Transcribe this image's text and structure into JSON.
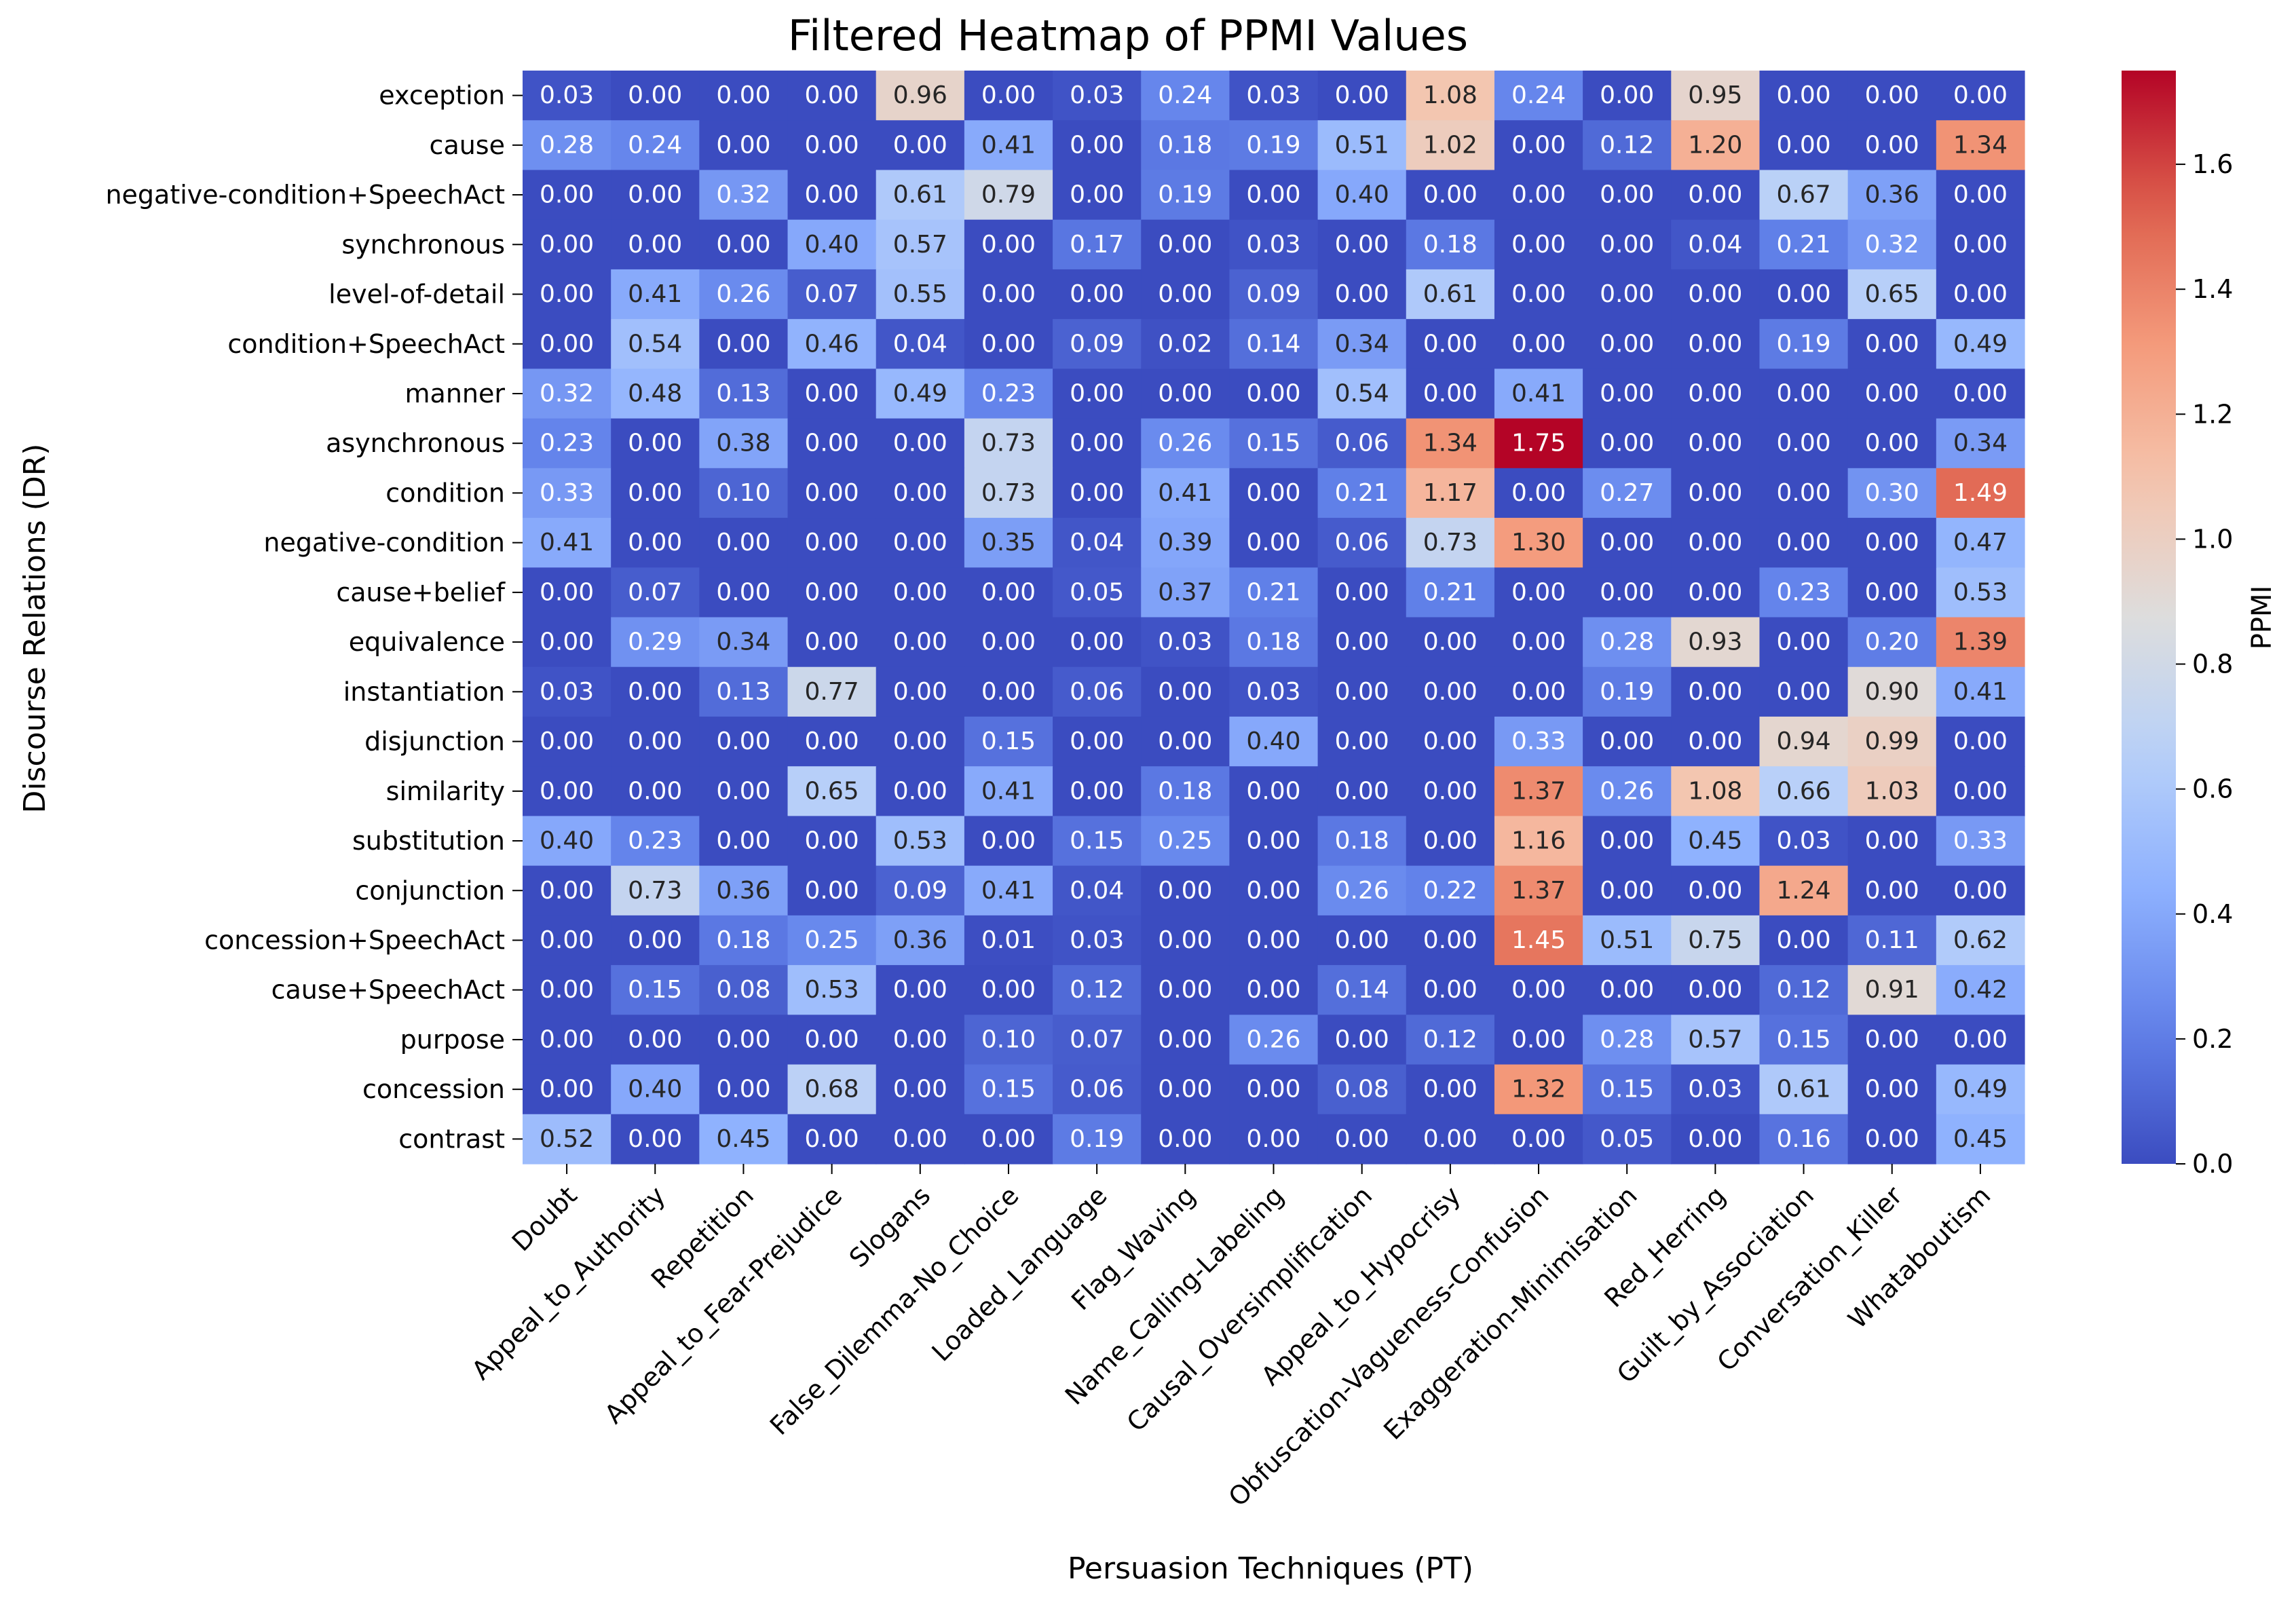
{
  "chart_data": {
    "type": "heatmap",
    "title": "Filtered Heatmap of PPMI Values",
    "xlabel": "Persuasion Techniques (PT)",
    "ylabel": "Discourse Relations (DR)",
    "colorbar_label": "PPMI",
    "colormap": "coolwarm",
    "vmin": 0.0,
    "vmax": 1.75,
    "colorbar_ticks": [
      "0.0",
      "0.2",
      "0.4",
      "0.6",
      "0.8",
      "1.0",
      "1.2",
      "1.4",
      "1.6"
    ],
    "columns": [
      "Doubt",
      "Appeal_to_Authority",
      "Repetition",
      "Appeal_to_Fear-Prejudice",
      "Slogans",
      "False_Dilemma-No_Choice",
      "Loaded_Language",
      "Flag_Waving",
      "Name_Calling-Labeling",
      "Causal_Oversimplification",
      "Appeal_to_Hypocrisy",
      "Obfuscation-Vagueness-Confusion",
      "Exaggeration-Minimisation",
      "Red_Herring",
      "Guilt_by_Association",
      "Conversation_Killer",
      "Whataboutism"
    ],
    "rows": [
      "exception",
      "cause",
      "negative-condition+SpeechAct",
      "synchronous",
      "level-of-detail",
      "condition+SpeechAct",
      "manner",
      "asynchronous",
      "condition",
      "negative-condition",
      "cause+belief",
      "equivalence",
      "instantiation",
      "disjunction",
      "similarity",
      "substitution",
      "conjunction",
      "concession+SpeechAct",
      "cause+SpeechAct",
      "purpose",
      "concession",
      "contrast"
    ],
    "values": [
      [
        0.03,
        0.0,
        0.0,
        0.0,
        0.96,
        0.0,
        0.03,
        0.24,
        0.03,
        0.0,
        1.08,
        0.24,
        0.0,
        0.95,
        0.0,
        0.0,
        0.0
      ],
      [
        0.28,
        0.24,
        0.0,
        0.0,
        0.0,
        0.41,
        0.0,
        0.18,
        0.19,
        0.51,
        1.02,
        0.0,
        0.12,
        1.2,
        0.0,
        0.0,
        1.34
      ],
      [
        0.0,
        0.0,
        0.32,
        0.0,
        0.61,
        0.79,
        0.0,
        0.19,
        0.0,
        0.4,
        0.0,
        0.0,
        0.0,
        0.0,
        0.67,
        0.36,
        0.0
      ],
      [
        0.0,
        0.0,
        0.0,
        0.4,
        0.57,
        0.0,
        0.17,
        0.0,
        0.03,
        0.0,
        0.18,
        0.0,
        0.0,
        0.04,
        0.21,
        0.32,
        0.0
      ],
      [
        0.0,
        0.41,
        0.26,
        0.07,
        0.55,
        0.0,
        0.0,
        0.0,
        0.09,
        0.0,
        0.61,
        0.0,
        0.0,
        0.0,
        0.0,
        0.65,
        0.0
      ],
      [
        0.0,
        0.54,
        0.0,
        0.46,
        0.04,
        0.0,
        0.09,
        0.02,
        0.14,
        0.34,
        0.0,
        0.0,
        0.0,
        0.0,
        0.19,
        0.0,
        0.49
      ],
      [
        0.32,
        0.48,
        0.13,
        0.0,
        0.49,
        0.23,
        0.0,
        0.0,
        0.0,
        0.54,
        0.0,
        0.41,
        0.0,
        0.0,
        0.0,
        0.0,
        0.0
      ],
      [
        0.23,
        0.0,
        0.38,
        0.0,
        0.0,
        0.73,
        0.0,
        0.26,
        0.15,
        0.06,
        1.34,
        1.75,
        0.0,
        0.0,
        0.0,
        0.0,
        0.34
      ],
      [
        0.33,
        0.0,
        0.1,
        0.0,
        0.0,
        0.73,
        0.0,
        0.41,
        0.0,
        0.21,
        1.17,
        0.0,
        0.27,
        0.0,
        0.0,
        0.3,
        1.49
      ],
      [
        0.41,
        0.0,
        0.0,
        0.0,
        0.0,
        0.35,
        0.04,
        0.39,
        0.0,
        0.06,
        0.73,
        1.3,
        0.0,
        0.0,
        0.0,
        0.0,
        0.47
      ],
      [
        0.0,
        0.07,
        0.0,
        0.0,
        0.0,
        0.0,
        0.05,
        0.37,
        0.21,
        0.0,
        0.21,
        0.0,
        0.0,
        0.0,
        0.23,
        0.0,
        0.53
      ],
      [
        0.0,
        0.29,
        0.34,
        0.0,
        0.0,
        0.0,
        0.0,
        0.03,
        0.18,
        0.0,
        0.0,
        0.0,
        0.28,
        0.93,
        0.0,
        0.2,
        1.39
      ],
      [
        0.03,
        0.0,
        0.13,
        0.77,
        0.0,
        0.0,
        0.06,
        0.0,
        0.03,
        0.0,
        0.0,
        0.0,
        0.19,
        0.0,
        0.0,
        0.9,
        0.41
      ],
      [
        0.0,
        0.0,
        0.0,
        0.0,
        0.0,
        0.15,
        0.0,
        0.0,
        0.4,
        0.0,
        0.0,
        0.33,
        0.0,
        0.0,
        0.94,
        0.99,
        0.0
      ],
      [
        0.0,
        0.0,
        0.0,
        0.65,
        0.0,
        0.41,
        0.0,
        0.18,
        0.0,
        0.0,
        0.0,
        1.37,
        0.26,
        1.08,
        0.66,
        1.03,
        0.0
      ],
      [
        0.4,
        0.23,
        0.0,
        0.0,
        0.53,
        0.0,
        0.15,
        0.25,
        0.0,
        0.18,
        0.0,
        1.16,
        0.0,
        0.45,
        0.03,
        0.0,
        0.33
      ],
      [
        0.0,
        0.73,
        0.36,
        0.0,
        0.09,
        0.41,
        0.04,
        0.0,
        0.0,
        0.26,
        0.22,
        1.37,
        0.0,
        0.0,
        1.24,
        0.0,
        0.0
      ],
      [
        0.0,
        0.0,
        0.18,
        0.25,
        0.36,
        0.01,
        0.03,
        0.0,
        0.0,
        0.0,
        0.0,
        1.45,
        0.51,
        0.75,
        0.0,
        0.11,
        0.62
      ],
      [
        0.0,
        0.15,
        0.08,
        0.53,
        0.0,
        0.0,
        0.12,
        0.0,
        0.0,
        0.14,
        0.0,
        0.0,
        0.0,
        0.0,
        0.12,
        0.91,
        0.42
      ],
      [
        0.0,
        0.0,
        0.0,
        0.0,
        0.0,
        0.1,
        0.07,
        0.0,
        0.26,
        0.0,
        0.12,
        0.0,
        0.28,
        0.57,
        0.15,
        0.0,
        0.0
      ],
      [
        0.0,
        0.4,
        0.0,
        0.68,
        0.0,
        0.15,
        0.06,
        0.0,
        0.0,
        0.08,
        0.0,
        1.32,
        0.15,
        0.03,
        0.61,
        0.0,
        0.49
      ],
      [
        0.52,
        0.0,
        0.45,
        0.0,
        0.0,
        0.0,
        0.19,
        0.0,
        0.0,
        0.0,
        0.0,
        0.0,
        0.05,
        0.0,
        0.16,
        0.0,
        0.45
      ]
    ]
  }
}
